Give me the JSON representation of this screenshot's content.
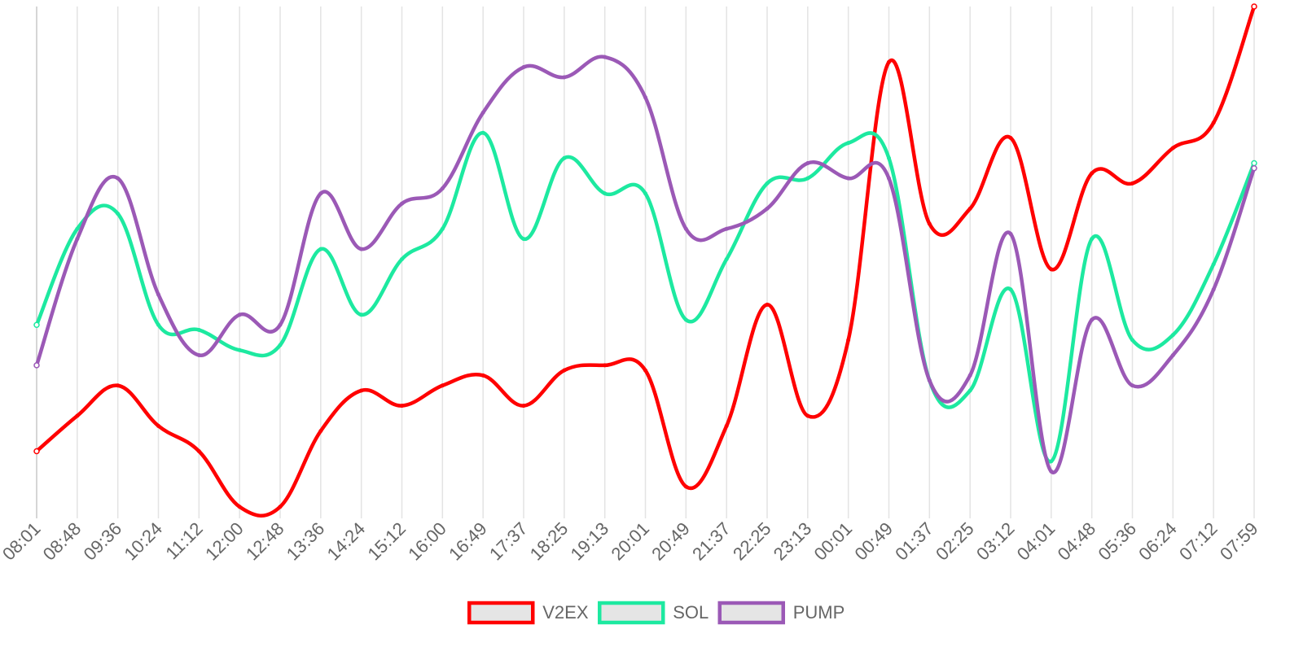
{
  "chart_data": {
    "type": "line",
    "x": [
      "08:01",
      "08:48",
      "09:36",
      "10:24",
      "11:12",
      "12:00",
      "12:48",
      "13:36",
      "14:24",
      "15:12",
      "16:00",
      "16:49",
      "17:37",
      "18:25",
      "19:13",
      "20:01",
      "20:49",
      "21:37",
      "22:25",
      "23:13",
      "00:01",
      "00:49",
      "01:37",
      "02:25",
      "03:12",
      "04:01",
      "04:48",
      "05:36",
      "06:24",
      "07:12",
      "07:59"
    ],
    "ylim": [
      0,
      100
    ],
    "grid": {
      "vertical": true,
      "horizontal": false
    },
    "legend": "bottom",
    "series": [
      {
        "name": "V2EX",
        "color": "#ff0000",
        "values": [
          12,
          19,
          25,
          17,
          12,
          1,
          1,
          16,
          24,
          21,
          25,
          27,
          21,
          28,
          29,
          28,
          5,
          17,
          41,
          19,
          34,
          89,
          57,
          60,
          74,
          48,
          67,
          65,
          72,
          77,
          100
        ]
      },
      {
        "name": "SOL",
        "color": "#1de9a0",
        "values": [
          37,
          56,
          59,
          37,
          36,
          32,
          33,
          52,
          39,
          50,
          56,
          75,
          54,
          70,
          63,
          63,
          38,
          50,
          65,
          66,
          73,
          70,
          26,
          24,
          44,
          10,
          54,
          34,
          35,
          49,
          69
        ]
      },
      {
        "name": "PUMP",
        "color": "#9b59b6",
        "values": [
          29,
          54,
          66,
          43,
          31,
          39,
          37,
          63,
          52,
          61,
          64,
          79,
          88,
          86,
          90,
          82,
          56,
          56,
          60,
          69,
          66,
          66,
          26,
          27,
          55,
          8,
          38,
          25,
          31,
          44,
          68
        ]
      }
    ]
  }
}
